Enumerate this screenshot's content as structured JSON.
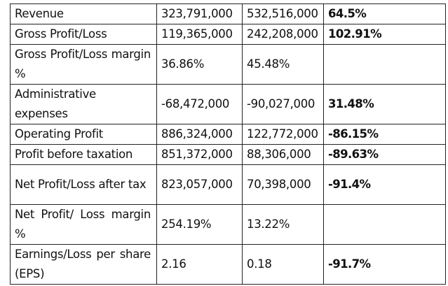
{
  "table": {
    "rows": [
      {
        "label": "Revenue",
        "v1": "323,791,000",
        "v2": "532,516,000",
        "change": "64.5%",
        "tall": false
      },
      {
        "label": "Gross Profit/Loss",
        "v1": "119,365,000",
        "v2": "242,208,000",
        "change": "102.91%",
        "tall": false
      },
      {
        "label": "Gross Profit/Loss margin %",
        "v1": "36.86%",
        "v2": "45.48%",
        "change": "",
        "tall": true
      },
      {
        "label": "Administrative expenses",
        "v1": "-68,472,000",
        "v2": "-90,027,000",
        "change": "31.48%",
        "tall": true
      },
      {
        "label": "Operating Profit",
        "v1": "886,324,000",
        "v2": "122,772,000",
        "change": "-86.15%",
        "tall": false
      },
      {
        "label": "Profit before taxation",
        "v1": "851,372,000",
        "v2": "88,306,000",
        "change": "-89.63%",
        "tall": false
      },
      {
        "label": "Net Profit/Loss after tax",
        "v1": "823,057,000",
        "v2": "70,398,000",
        "change": "-91.4%",
        "tall": true
      },
      {
        "label": "Net Profit/ Loss margin %",
        "v1": "254.19%",
        "v2": "13.22%",
        "change": "",
        "tall": true
      },
      {
        "label": "Earnings/Loss per share (EPS)",
        "v1": "2.16",
        "v2": "0.18",
        "change": "-91.7%",
        "tall": true
      }
    ]
  }
}
